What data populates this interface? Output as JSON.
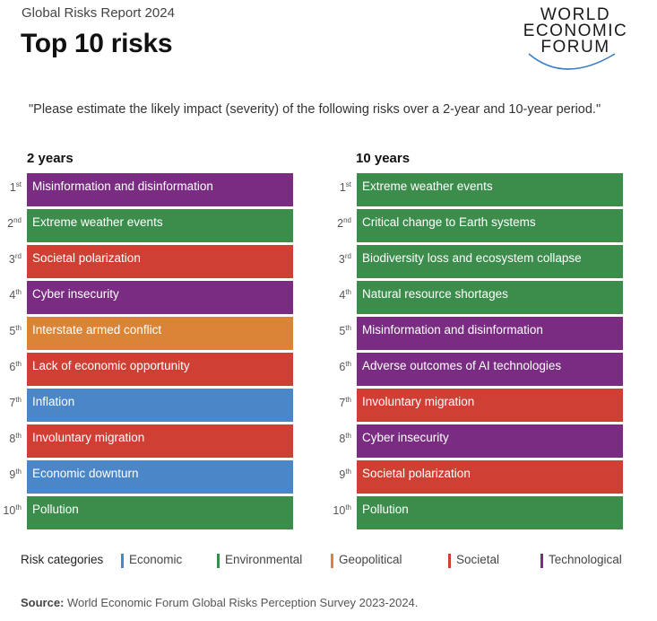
{
  "header": {
    "report_title": "Global Risks Report 2024",
    "main_title": "Top 10 risks"
  },
  "logo": {
    "line1": "WORLD",
    "line2": "ECONOMIC",
    "line3": "FORUM"
  },
  "question": "\"Please estimate the likely impact (severity) of the following risks over a 2-year and 10-year period.\"",
  "colors": {
    "Economic": "#4a86c8",
    "Environmental": "#3c8c4c",
    "Geopolitical": "#d98436",
    "Societal": "#cf3f33",
    "Technological": "#7a2b82"
  },
  "columns": [
    {
      "heading": "2 years",
      "items": [
        {
          "num": "1",
          "suffix": "st",
          "label": "Misinformation and disinformation",
          "category": "Technological"
        },
        {
          "num": "2",
          "suffix": "nd",
          "label": "Extreme weather events",
          "category": "Environmental"
        },
        {
          "num": "3",
          "suffix": "rd",
          "label": "Societal polarization",
          "category": "Societal"
        },
        {
          "num": "4",
          "suffix": "th",
          "label": "Cyber insecurity",
          "category": "Technological"
        },
        {
          "num": "5",
          "suffix": "th",
          "label": "Interstate armed conflict",
          "category": "Geopolitical"
        },
        {
          "num": "6",
          "suffix": "th",
          "label": "Lack of economic opportunity",
          "category": "Societal"
        },
        {
          "num": "7",
          "suffix": "th",
          "label": "Inflation",
          "category": "Economic"
        },
        {
          "num": "8",
          "suffix": "th",
          "label": "Involuntary migration",
          "category": "Societal"
        },
        {
          "num": "9",
          "suffix": "th",
          "label": "Economic downturn",
          "category": "Economic"
        },
        {
          "num": "10",
          "suffix": "th",
          "label": "Pollution",
          "category": "Environmental"
        }
      ]
    },
    {
      "heading": "10 years",
      "items": [
        {
          "num": "1",
          "suffix": "st",
          "label": "Extreme weather events",
          "category": "Environmental"
        },
        {
          "num": "2",
          "suffix": "nd",
          "label": "Critical change to Earth systems",
          "category": "Environmental"
        },
        {
          "num": "3",
          "suffix": "rd",
          "label": "Biodiversity loss and ecosystem collapse",
          "category": "Environmental"
        },
        {
          "num": "4",
          "suffix": "th",
          "label": "Natural resource shortages",
          "category": "Environmental"
        },
        {
          "num": "5",
          "suffix": "th",
          "label": "Misinformation and disinformation",
          "category": "Technological"
        },
        {
          "num": "6",
          "suffix": "th",
          "label": "Adverse outcomes of AI technologies",
          "category": "Technological"
        },
        {
          "num": "7",
          "suffix": "th",
          "label": "Involuntary migration",
          "category": "Societal"
        },
        {
          "num": "8",
          "suffix": "th",
          "label": "Cyber insecurity",
          "category": "Technological"
        },
        {
          "num": "9",
          "suffix": "th",
          "label": "Societal polarization",
          "category": "Societal"
        },
        {
          "num": "10",
          "suffix": "th",
          "label": "Pollution",
          "category": "Environmental"
        }
      ]
    }
  ],
  "legend": {
    "title": "Risk categories",
    "items": [
      {
        "label": "Economic",
        "category": "Economic"
      },
      {
        "label": "Environmental",
        "category": "Environmental"
      },
      {
        "label": "Geopolitical",
        "category": "Geopolitical"
      },
      {
        "label": "Societal",
        "category": "Societal"
      },
      {
        "label": "Technological",
        "category": "Technological"
      }
    ]
  },
  "source": {
    "label": "Source:",
    "text": " World Economic Forum Global Risks Perception Survey 2023-2024."
  }
}
